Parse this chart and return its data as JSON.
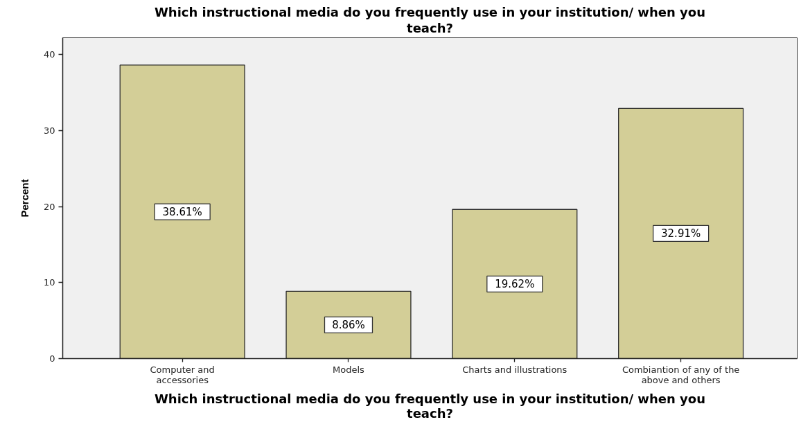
{
  "chart_data": {
    "type": "bar",
    "title": "Which instructional media do you frequently use in your institution/ when you\nteach?",
    "xlabel": "Which instructional media do you frequently use in your institution/ when you\nteach?",
    "ylabel": "Percent",
    "categories": [
      "Computer and\naccessories",
      "Models",
      "Charts and illustrations",
      "Combiantion of any of the\nabove and others"
    ],
    "values": [
      38.61,
      8.86,
      19.62,
      32.91
    ],
    "value_labels": [
      "38.61%",
      "8.86%",
      "19.62%",
      "32.91%"
    ],
    "color": "#d3ce97",
    "ylim": [
      0,
      42.2
    ],
    "yticks": [
      0,
      10,
      20,
      30,
      40
    ],
    "grid": false
  }
}
